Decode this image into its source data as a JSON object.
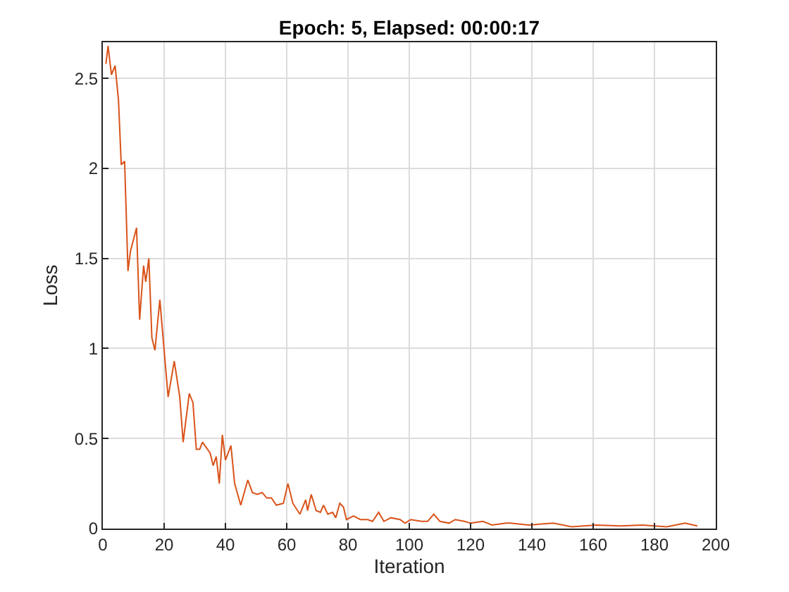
{
  "chart_data": {
    "type": "line",
    "title": "Epoch: 5, Elapsed: 00:00:17",
    "xlabel": "Iteration",
    "ylabel": "Loss",
    "series": [
      {
        "color": "#d95319",
        "x": [
          1,
          1.7,
          2.8,
          4,
          5.1,
          6,
          7.1,
          8.2,
          9,
          11,
          12,
          13.3,
          14,
          15,
          16,
          17,
          18.6,
          21.3,
          23.3,
          25.1,
          26.2,
          28.2,
          29.4,
          30.5,
          31.6,
          32.5,
          35,
          36,
          37,
          38,
          39,
          40,
          41.8,
          43,
          45,
          47.3,
          48.8,
          50.4,
          52,
          53.5,
          55,
          56.6,
          58.9,
          60.4,
          62,
          64.3,
          66.2,
          66.8,
          68,
          69.6,
          71,
          72,
          73.4,
          75,
          76,
          77.3,
          78.5,
          79.5,
          81.8,
          84,
          86.4,
          88,
          90,
          91.7,
          94,
          97,
          98.6,
          100.5,
          104,
          106,
          108,
          110,
          113,
          115,
          118,
          120,
          124,
          127,
          131.6,
          133,
          139,
          147,
          153,
          161,
          169,
          176,
          184,
          190,
          194
        ],
        "values": [
          2.58,
          2.68,
          2.52,
          2.57,
          2.38,
          2.02,
          2.04,
          1.43,
          1.54,
          1.67,
          1.16,
          1.46,
          1.37,
          1.5,
          1.06,
          0.99,
          1.27,
          0.73,
          0.93,
          0.73,
          0.48,
          0.75,
          0.7,
          0.44,
          0.44,
          0.48,
          0.42,
          0.35,
          0.4,
          0.25,
          0.52,
          0.38,
          0.46,
          0.25,
          0.13,
          0.27,
          0.2,
          0.19,
          0.2,
          0.17,
          0.17,
          0.13,
          0.14,
          0.25,
          0.14,
          0.08,
          0.16,
          0.1,
          0.19,
          0.1,
          0.09,
          0.13,
          0.08,
          0.09,
          0.06,
          0.14,
          0.12,
          0.05,
          0.07,
          0.05,
          0.05,
          0.04,
          0.09,
          0.04,
          0.06,
          0.05,
          0.03,
          0.05,
          0.04,
          0.04,
          0.08,
          0.04,
          0.03,
          0.05,
          0.04,
          0.03,
          0.04,
          0.02,
          0.03,
          0.03,
          0.02,
          0.03,
          0.01,
          0.02,
          0.015,
          0.02,
          0.01,
          0.03,
          0.015
        ]
      }
    ],
    "xlim": [
      0,
      200
    ],
    "xticks": [
      0,
      20,
      40,
      60,
      80,
      100,
      120,
      140,
      160,
      180,
      200
    ],
    "ylim": [
      0,
      2.7
    ],
    "yticks": [
      0,
      0.5,
      1,
      1.5,
      2,
      2.5
    ],
    "grid": true,
    "marker": "none",
    "line_style": "solid"
  }
}
